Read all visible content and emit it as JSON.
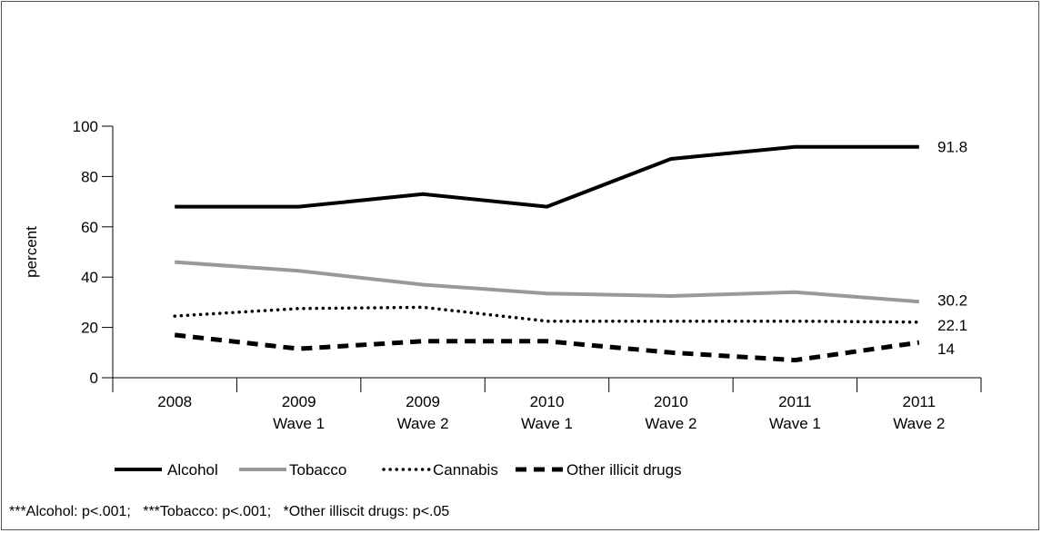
{
  "chart_data": {
    "type": "line",
    "ylabel": "percent",
    "ylim": [
      0,
      100
    ],
    "yticks": [
      0,
      20,
      40,
      60,
      80,
      100
    ],
    "categories": [
      [
        "2008"
      ],
      [
        "2009",
        "Wave 1"
      ],
      [
        "2009",
        "Wave 2"
      ],
      [
        "2010",
        "Wave 1"
      ],
      [
        "2010",
        "Wave 2"
      ],
      [
        "2011",
        "Wave 1"
      ],
      [
        "2011",
        "Wave 2"
      ]
    ],
    "series": [
      {
        "name": "Alcohol",
        "values": [
          68,
          68,
          73,
          68,
          87,
          91.8,
          91.8
        ],
        "style": "solid",
        "color": "#000000",
        "end_label": "91.8"
      },
      {
        "name": "Tobacco",
        "values": [
          46,
          42.5,
          37,
          33.5,
          32.5,
          34,
          30.2
        ],
        "style": "solid",
        "color": "#999999",
        "end_label": "30.2"
      },
      {
        "name": "Cannabis",
        "values": [
          24.5,
          27.5,
          28,
          22.5,
          22.5,
          22.5,
          22.1
        ],
        "style": "dotted",
        "color": "#000000",
        "end_label": "22.1"
      },
      {
        "name": "Other illicit drugs",
        "values": [
          17,
          11.5,
          14.5,
          14.5,
          10,
          7,
          14
        ],
        "style": "dashed",
        "color": "#000000",
        "end_label": "14"
      }
    ],
    "legend_position": "bottom",
    "grid": false
  },
  "footnote": "***Alcohol: p<.001;   ***Tobacco: p<.001;   *Other illiscit drugs: p<.05"
}
